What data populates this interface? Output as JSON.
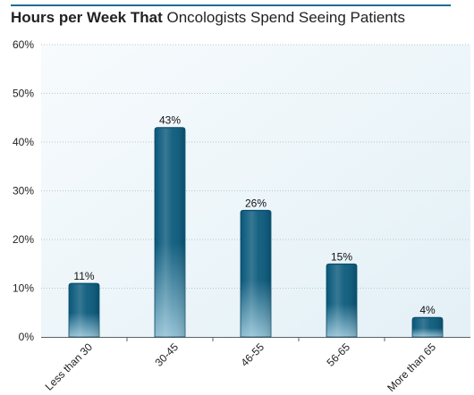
{
  "title": {
    "bold": "Hours per Week That",
    "regular": "Oncologists Spend Seeing Patients"
  },
  "chart_data": {
    "type": "bar",
    "title": "Hours per Week That Oncologists Spend Seeing Patients",
    "categories": [
      "Less than 30",
      "30-45",
      "46-55",
      "56-65",
      "More than 65"
    ],
    "values": [
      11,
      43,
      26,
      15,
      4
    ],
    "data_labels": [
      "11%",
      "43%",
      "26%",
      "15%",
      "4%"
    ],
    "yticks": [
      0,
      10,
      20,
      30,
      40,
      50,
      60
    ],
    "ytick_labels": [
      "0%",
      "10%",
      "20%",
      "30%",
      "40%",
      "50%",
      "60%"
    ],
    "ylim": [
      0,
      60
    ],
    "xlabel": "",
    "ylabel": "",
    "grid": true,
    "legend": "none",
    "colors": {
      "bar_dark": "#0b5a7c",
      "bar_light": "#8fbfd3",
      "plot_bg_light": "#f7fbfd",
      "plot_bg_dark": "#e3f0f6",
      "grid": "#b8c6cc",
      "axis": "#5a6266",
      "title_rule": "#1f6d93"
    }
  }
}
